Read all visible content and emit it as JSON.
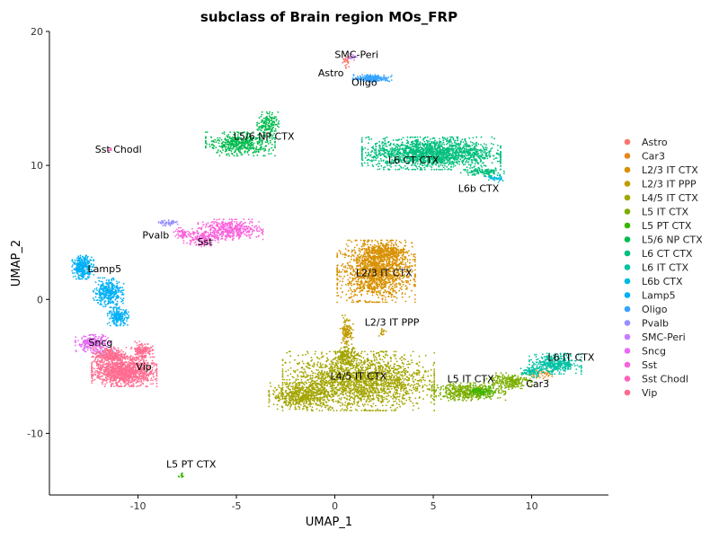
{
  "chart_data": {
    "type": "scatter",
    "title": "subclass of Brain region MOs_FRP",
    "xlabel": "UMAP_1",
    "ylabel": "UMAP_2",
    "xlim": [
      -14.5,
      13.9
    ],
    "ylim": [
      -14.6,
      20.0
    ],
    "x_ticks": [
      -10,
      -5,
      0,
      5,
      10
    ],
    "y_ticks": [
      -10,
      0,
      10,
      20
    ],
    "x_tick_labels": [
      "-10",
      "-5",
      "0",
      "5",
      "10"
    ],
    "y_tick_labels": [
      "-10",
      "0",
      "10",
      "20"
    ],
    "grid": false,
    "legend_position": "right",
    "series": [
      {
        "name": "Astro",
        "color": "#F8766D",
        "regions": [
          {
            "cx": 0.6,
            "cy": 17.8,
            "rx": 0.2,
            "ry": 0.5,
            "n": 25
          }
        ]
      },
      {
        "name": "Car3",
        "color": "#E7861B",
        "regions": [
          {
            "cx": 10.6,
            "cy": -5.6,
            "rx": 0.6,
            "ry": 0.4,
            "n": 40
          }
        ]
      },
      {
        "name": "L2/3 IT CTX",
        "color": "#D89000",
        "regions": [
          {
            "cx": 2.1,
            "cy": 2.1,
            "rx": 1.8,
            "ry": 2.1,
            "n": 1500
          },
          {
            "cx": 2.6,
            "cy": 3.6,
            "rx": 1.0,
            "ry": 0.7,
            "n": 250
          }
        ]
      },
      {
        "name": "L2/3 IT PPP",
        "color": "#C09B00",
        "regions": [
          {
            "cx": 0.6,
            "cy": -2.4,
            "rx": 0.3,
            "ry": 1.1,
            "n": 120
          },
          {
            "cx": 2.4,
            "cy": -2.4,
            "rx": 0.2,
            "ry": 0.3,
            "n": 15
          }
        ]
      },
      {
        "name": "L4/5 IT CTX",
        "color": "#A3A500",
        "regions": [
          {
            "cx": 1.2,
            "cy": -6.1,
            "rx": 3.5,
            "ry": 2.0,
            "n": 2200
          },
          {
            "cx": -1.7,
            "cy": -7.2,
            "rx": 1.5,
            "ry": 0.9,
            "n": 500
          },
          {
            "cx": 0.6,
            "cy": -4.2,
            "rx": 0.5,
            "ry": 0.6,
            "n": 150
          }
        ]
      },
      {
        "name": "L5 IT CTX",
        "color": "#7CAE00",
        "regions": [
          {
            "cx": 6.8,
            "cy": -6.9,
            "rx": 1.7,
            "ry": 0.6,
            "n": 500
          },
          {
            "cx": 8.8,
            "cy": -6.1,
            "rx": 1.1,
            "ry": 0.55,
            "n": 250
          }
        ]
      },
      {
        "name": "L5 PT CTX",
        "color": "#39B600",
        "regions": [
          {
            "cx": -7.8,
            "cy": -13.1,
            "rx": 0.15,
            "ry": 0.2,
            "n": 12
          },
          {
            "cx": 7.5,
            "cy": -6.9,
            "rx": 0.6,
            "ry": 0.4,
            "n": 80
          }
        ]
      },
      {
        "name": "L5/6 NP CTX",
        "color": "#00BB4E",
        "regions": [
          {
            "cx": -4.8,
            "cy": 11.6,
            "rx": 1.6,
            "ry": 0.8,
            "n": 500
          },
          {
            "cx": -3.4,
            "cy": 13.1,
            "rx": 0.5,
            "ry": 0.8,
            "n": 150
          }
        ]
      },
      {
        "name": "L6 CT CTX",
        "color": "#00BF7D",
        "regions": [
          {
            "cx": 4.9,
            "cy": 10.9,
            "rx": 3.2,
            "ry": 1.1,
            "n": 1800
          },
          {
            "cx": 7.5,
            "cy": 9.5,
            "rx": 1.0,
            "ry": 0.3,
            "n": 120
          }
        ]
      },
      {
        "name": "L6 IT CTX",
        "color": "#00C1A3",
        "regions": [
          {
            "cx": 11.2,
            "cy": -4.8,
            "rx": 1.2,
            "ry": 0.7,
            "n": 400
          },
          {
            "cx": 10.0,
            "cy": -5.4,
            "rx": 0.5,
            "ry": 0.4,
            "n": 80
          }
        ]
      },
      {
        "name": "L6b CTX",
        "color": "#00BADE",
        "regions": [
          {
            "cx": 8.1,
            "cy": 9.0,
            "rx": 0.4,
            "ry": 0.25,
            "n": 40
          }
        ]
      },
      {
        "name": "Lamp5",
        "color": "#00B0F6",
        "regions": [
          {
            "cx": -12.8,
            "cy": 2.4,
            "rx": 0.5,
            "ry": 0.8,
            "n": 300
          },
          {
            "cx": -11.5,
            "cy": 0.5,
            "rx": 0.7,
            "ry": 1.0,
            "n": 350
          },
          {
            "cx": -11.0,
            "cy": -1.3,
            "rx": 0.5,
            "ry": 0.6,
            "n": 200
          }
        ]
      },
      {
        "name": "Oligo",
        "color": "#35A2FF",
        "regions": [
          {
            "cx": 1.9,
            "cy": 16.5,
            "rx": 0.9,
            "ry": 0.25,
            "n": 200
          }
        ]
      },
      {
        "name": "Pvalb",
        "color": "#9590FF",
        "regions": [
          {
            "cx": -8.4,
            "cy": 5.7,
            "rx": 0.5,
            "ry": 0.2,
            "n": 50
          },
          {
            "cx": -11.6,
            "cy": -4.0,
            "rx": 0.4,
            "ry": 0.3,
            "n": 30
          }
        ]
      },
      {
        "name": "SMC-Peri",
        "color": "#C77CFF",
        "regions": [
          {
            "cx": 0.9,
            "cy": 18.1,
            "rx": 0.2,
            "ry": 0.25,
            "n": 15
          }
        ]
      },
      {
        "name": "Sncg",
        "color": "#E76BF3",
        "regions": [
          {
            "cx": -12.3,
            "cy": -3.3,
            "rx": 0.8,
            "ry": 0.6,
            "n": 250
          }
        ]
      },
      {
        "name": "Sst",
        "color": "#FA62DB",
        "regions": [
          {
            "cx": -5.3,
            "cy": 5.2,
            "rx": 1.5,
            "ry": 0.7,
            "n": 450
          },
          {
            "cx": -6.8,
            "cy": 4.6,
            "rx": 0.8,
            "ry": 0.6,
            "n": 150
          },
          {
            "cx": -7.8,
            "cy": 4.9,
            "rx": 0.4,
            "ry": 0.4,
            "n": 60
          }
        ]
      },
      {
        "name": "Sst Chodl",
        "color": "#FF62BC",
        "regions": [
          {
            "cx": -11.4,
            "cy": 11.2,
            "rx": 0.1,
            "ry": 0.12,
            "n": 8
          }
        ]
      },
      {
        "name": "Vip",
        "color": "#FF6C91",
        "regions": [
          {
            "cx": -10.7,
            "cy": -5.4,
            "rx": 1.5,
            "ry": 1.0,
            "n": 1200
          },
          {
            "cx": -11.4,
            "cy": -4.2,
            "rx": 0.8,
            "ry": 0.6,
            "n": 300
          },
          {
            "cx": -9.8,
            "cy": -3.8,
            "rx": 0.5,
            "ry": 0.6,
            "n": 150
          }
        ]
      }
    ],
    "annotations": [
      {
        "text": "SMC-Peri",
        "x": 1.1,
        "y": 18.3
      },
      {
        "text": "Astro",
        "x": -0.2,
        "y": 16.9
      },
      {
        "text": "Oligo",
        "x": 1.5,
        "y": 16.2
      },
      {
        "text": "L5/6 NP CTX",
        "x": -3.6,
        "y": 12.2
      },
      {
        "text": "Sst Chodl",
        "x": -11.0,
        "y": 11.2
      },
      {
        "text": "L6 CT CTX",
        "x": 4.0,
        "y": 10.4
      },
      {
        "text": "L6b CTX",
        "x": 7.3,
        "y": 8.3
      },
      {
        "text": "Pvalb",
        "x": -9.1,
        "y": 4.8
      },
      {
        "text": "Sst",
        "x": -6.6,
        "y": 4.3
      },
      {
        "text": "Lamp5",
        "x": -11.7,
        "y": 2.3
      },
      {
        "text": "L2/3 IT CTX",
        "x": 2.5,
        "y": 2.0
      },
      {
        "text": "L2/3 IT PPP",
        "x": 2.9,
        "y": -1.7
      },
      {
        "text": "Sncg",
        "x": -11.9,
        "y": -3.2
      },
      {
        "text": "Vip",
        "x": -9.7,
        "y": -5.0
      },
      {
        "text": "L4/5 IT CTX",
        "x": 1.2,
        "y": -5.7
      },
      {
        "text": "L6 IT CTX",
        "x": 12.0,
        "y": -4.3
      },
      {
        "text": "L5 IT CTX",
        "x": 6.9,
        "y": -5.9
      },
      {
        "text": "Car3",
        "x": 10.3,
        "y": -6.3
      },
      {
        "text": "L5 PT CTX",
        "x": -7.3,
        "y": -12.3
      }
    ]
  }
}
